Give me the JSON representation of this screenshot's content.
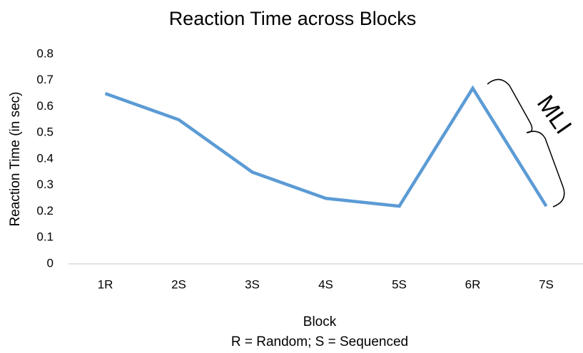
{
  "chart_data": {
    "type": "line",
    "title": "Reaction Time across Blocks",
    "x_label": "Block",
    "x_sublabel": "R = Random; S = Sequenced",
    "y_label": "Reaction Time (in sec)",
    "categories": [
      "1R",
      "2S",
      "3S",
      "4S",
      "5S",
      "6R",
      "7S"
    ],
    "values": [
      0.65,
      0.55,
      0.35,
      0.25,
      0.22,
      0.67,
      0.22
    ],
    "color": "#5b9bd5",
    "ylim": [
      0,
      0.8
    ],
    "yticks": [
      0,
      0.1,
      0.2,
      0.3,
      0.4,
      0.5,
      0.6,
      0.7,
      0.8
    ],
    "grid": false,
    "annotation": "MLI"
  }
}
